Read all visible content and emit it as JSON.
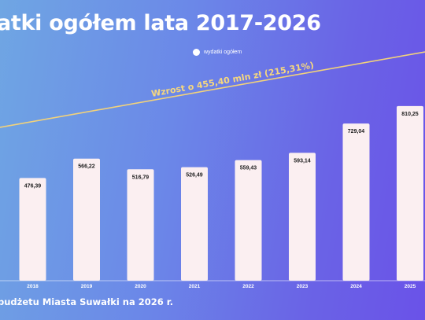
{
  "header": {
    "title": "atki ogółem lata 2017-2026"
  },
  "footer": {
    "caption": "budżetu Miasta Suwałki na 2026 r."
  },
  "chart_data": {
    "type": "bar",
    "categories": [
      "2018",
      "2019",
      "2020",
      "2021",
      "2022",
      "2023",
      "2024",
      "2025"
    ],
    "series": [
      {
        "name": "wydatki ogółem",
        "values": [
          476.39,
          566.22,
          516.79,
          526.49,
          559.43,
          593.14,
          729.04,
          810.25
        ]
      }
    ],
    "value_labels": [
      "476,39",
      "566,22",
      "516,79",
      "526,49",
      "559,43",
      "593,14",
      "729,04",
      "810,25"
    ],
    "annotation": "Wzrost o 455,40 mln zł (215,31%)",
    "legend_position": "top-center",
    "grid": false,
    "colors": {
      "bar": "#fbeff1",
      "trend": "#f2d27a",
      "text": "#ffffff"
    }
  }
}
